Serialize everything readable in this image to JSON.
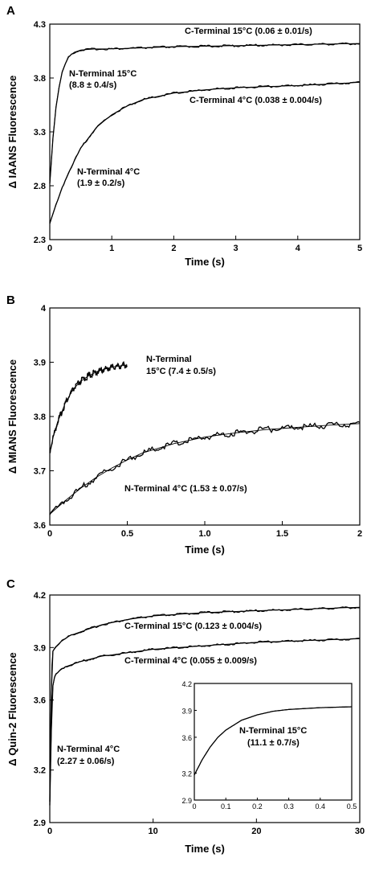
{
  "chart_data": [
    {
      "panel": "A",
      "type": "line",
      "xlabel": "Time (s)",
      "ylabel": "Δ IAANS Fluorescence",
      "xlim": [
        0,
        5
      ],
      "ylim": [
        2.3,
        4.3
      ],
      "xticks": [
        0,
        1,
        2,
        3,
        4,
        5
      ],
      "yticks": [
        2.3,
        2.8,
        3.3,
        3.8,
        4.3
      ],
      "ytick_labels": [
        "2.3",
        "2.8",
        "3.3",
        "3.8",
        "4.3"
      ],
      "series": [
        {
          "name": "C-Terminal 15°C",
          "rate": "0.06 ± 0.01/s",
          "x": [
            0,
            0.05,
            0.1,
            0.15,
            0.2,
            0.25,
            0.3,
            0.35,
            0.4,
            0.45,
            0.5,
            0.75,
            1.0,
            1.5,
            2.0,
            3.0,
            4.0,
            5.0
          ],
          "y": [
            2.82,
            3.24,
            3.53,
            3.72,
            3.85,
            3.93,
            3.99,
            4.02,
            4.04,
            4.05,
            4.06,
            4.07,
            4.07,
            4.08,
            4.09,
            4.1,
            4.11,
            4.12
          ]
        },
        {
          "name": "C-Terminal 4°C",
          "rate": "0.038 ± 0.004/s",
          "x": [
            0,
            0.1,
            0.2,
            0.3,
            0.5,
            0.75,
            1.0,
            1.25,
            1.5,
            2.0,
            2.5,
            3.0,
            3.5,
            4.0,
            4.5,
            5.0
          ],
          "y": [
            2.45,
            2.62,
            2.78,
            2.92,
            3.15,
            3.34,
            3.46,
            3.54,
            3.6,
            3.66,
            3.69,
            3.71,
            3.72,
            3.73,
            3.745,
            3.76
          ]
        }
      ],
      "annotations": [
        {
          "line1": "C-Terminal 15°C (0.06 ± 0.01/s)"
        },
        {
          "line1": "N-Terminal 15°C",
          "line2": "(8.8 ± 0.4/s)"
        },
        {
          "line1": "C-Terminal 4°C (0.038 ± 0.004/s)"
        },
        {
          "line1": "N-Terminal 4°C",
          "line2": "(1.9 ± 0.2/s)"
        }
      ]
    },
    {
      "panel": "B",
      "type": "line",
      "xlabel": "Time (s)",
      "ylabel": "Δ MIANS Fluorescence",
      "xlim": [
        0,
        2
      ],
      "ylim": [
        3.6,
        4.0
      ],
      "xticks": [
        0,
        0.5,
        1.0,
        1.5,
        2
      ],
      "xtick_labels": [
        "0",
        "0.5",
        "1.0",
        "1.5",
        "2"
      ],
      "yticks": [
        3.6,
        3.7,
        3.8,
        3.9,
        4.0
      ],
      "ytick_labels": [
        "3.6",
        "3.7",
        "3.8",
        "3.9",
        "4"
      ],
      "series": [
        {
          "name": "N-Terminal 15°C",
          "rate": "7.4 ± 0.5/s",
          "x": [
            0,
            0.02,
            0.05,
            0.08,
            0.1,
            0.15,
            0.2,
            0.25,
            0.3,
            0.35,
            0.4,
            0.45,
            0.5
          ],
          "y": [
            3.735,
            3.76,
            3.79,
            3.81,
            3.825,
            3.85,
            3.865,
            3.875,
            3.882,
            3.887,
            3.891,
            3.893,
            3.895
          ]
        },
        {
          "name": "N-Terminal 4°C",
          "rate": "1.53 ± 0.07/s",
          "x": [
            0,
            0.1,
            0.2,
            0.3,
            0.4,
            0.5,
            0.6,
            0.8,
            1.0,
            1.2,
            1.4,
            1.6,
            1.8,
            2.0
          ],
          "y": [
            3.62,
            3.645,
            3.668,
            3.688,
            3.705,
            3.72,
            3.733,
            3.75,
            3.762,
            3.77,
            3.776,
            3.78,
            3.784,
            3.787
          ]
        }
      ],
      "annotations": [
        {
          "line1": "N-Terminal",
          "line2": "15°C (7.4 ± 0.5/s)"
        },
        {
          "line1": "N-Terminal 4°C (1.53 ± 0.07/s)"
        }
      ]
    },
    {
      "panel": "C",
      "type": "line",
      "xlabel": "Time (s)",
      "ylabel": "Δ Quin-2 Fluorescence",
      "xlim": [
        0,
        30
      ],
      "ylim": [
        2.9,
        4.2
      ],
      "xticks": [
        0,
        10,
        20,
        30
      ],
      "yticks": [
        2.9,
        3.2,
        3.6,
        3.9,
        4.2
      ],
      "ytick_labels": [
        "2.9",
        "3.2",
        "3.6",
        "3.9",
        "4.2"
      ],
      "series": [
        {
          "name": "C-Terminal 15°C",
          "rate": "0.123 ± 0.004/s",
          "x": [
            0,
            0.1,
            0.2,
            0.3,
            0.5,
            1,
            2,
            3,
            5,
            7.5,
            10,
            15,
            20,
            25,
            30
          ],
          "y": [
            3.02,
            3.5,
            3.8,
            3.88,
            3.9,
            3.93,
            3.97,
            3.99,
            4.03,
            4.06,
            4.08,
            4.1,
            4.11,
            4.12,
            4.13
          ]
        },
        {
          "name": "C-Terminal 4°C",
          "rate": "0.055 ± 0.009/s",
          "x": [
            0,
            0.1,
            0.2,
            0.3,
            0.5,
            1,
            1.5,
            2,
            3,
            5,
            7.5,
            10,
            15,
            20,
            25,
            30
          ],
          "y": [
            3.0,
            3.3,
            3.55,
            3.68,
            3.74,
            3.77,
            3.79,
            3.8,
            3.82,
            3.85,
            3.87,
            3.89,
            3.91,
            3.93,
            3.94,
            3.95
          ]
        }
      ],
      "annotations": [
        {
          "line1": "C-Terminal 15°C (0.123 ± 0.004/s)"
        },
        {
          "line1": "C-Terminal 4°C (0.055 ± 0.009/s)"
        },
        {
          "line1": "N-Terminal 4°C",
          "line2": "(2.27 ± 0.06/s)"
        }
      ],
      "inset": {
        "xlim": [
          0,
          0.5
        ],
        "ylim": [
          2.9,
          4.2
        ],
        "xticks": [
          0,
          0.1,
          0.2,
          0.3,
          0.4,
          0.5
        ],
        "yticks": [
          2.9,
          3.2,
          3.6,
          3.9,
          4.2
        ],
        "ytick_labels": [
          "2.9",
          "3.2",
          "3.6",
          "3.9",
          "4.2"
        ],
        "series": [
          {
            "name": "N-Terminal 15°C",
            "rate": "11.1 ± 0.7/s",
            "x": [
              0,
              0.025,
              0.05,
              0.075,
              0.1,
              0.15,
              0.2,
              0.25,
              0.3,
              0.35,
              0.4,
              0.45,
              0.5
            ],
            "y": [
              3.18,
              3.35,
              3.49,
              3.6,
              3.68,
              3.79,
              3.85,
              3.89,
              3.91,
              3.92,
              3.93,
              3.935,
              3.94
            ]
          }
        ],
        "annotations": [
          {
            "line1": "N-Terminal 15°C",
            "line2": "(11.1 ± 0.7/s)"
          }
        ]
      }
    }
  ]
}
